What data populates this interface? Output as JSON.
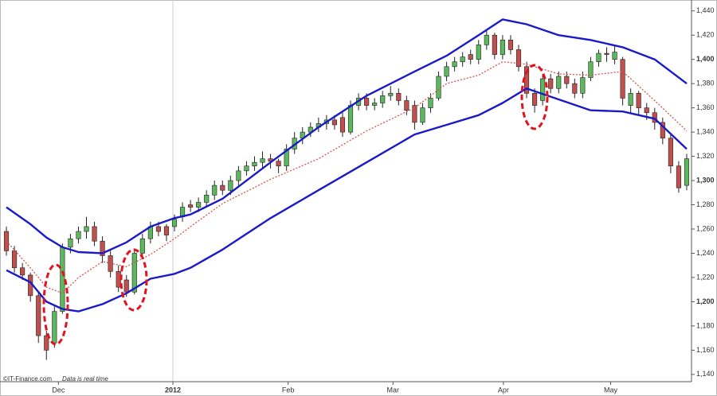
{
  "chart_data": {
    "type": "candlestick",
    "candles": [
      [
        1258,
        1262,
        1238,
        1242
      ],
      [
        1242,
        1246,
        1224,
        1228
      ],
      [
        1228,
        1232,
        1218,
        1222
      ],
      [
        1222,
        1224,
        1200,
        1205
      ],
      [
        1205,
        1208,
        1166,
        1172
      ],
      [
        1172,
        1176,
        1152,
        1160
      ],
      [
        1166,
        1196,
        1162,
        1192
      ],
      [
        1192,
        1248,
        1190,
        1245
      ],
      [
        1245,
        1256,
        1240,
        1252
      ],
      [
        1252,
        1262,
        1248,
        1258
      ],
      [
        1258,
        1270,
        1252,
        1262
      ],
      [
        1262,
        1266,
        1246,
        1250
      ],
      [
        1250,
        1254,
        1232,
        1238
      ],
      [
        1238,
        1242,
        1220,
        1225
      ],
      [
        1225,
        1230,
        1208,
        1212
      ],
      [
        1218,
        1222,
        1204,
        1208
      ],
      [
        1208,
        1244,
        1206,
        1240
      ],
      [
        1240,
        1256,
        1236,
        1252
      ],
      [
        1252,
        1266,
        1248,
        1262
      ],
      [
        1262,
        1266,
        1254,
        1258
      ],
      [
        1262,
        1264,
        1250,
        1255
      ],
      [
        1262,
        1272,
        1258,
        1268
      ],
      [
        1270,
        1282,
        1266,
        1278
      ],
      [
        1280,
        1284,
        1274,
        1278
      ],
      [
        1278,
        1286,
        1274,
        1282
      ],
      [
        1282,
        1292,
        1278,
        1288
      ],
      [
        1288,
        1300,
        1284,
        1296
      ],
      [
        1296,
        1300,
        1288,
        1292
      ],
      [
        1292,
        1304,
        1288,
        1300
      ],
      [
        1300,
        1312,
        1296,
        1308
      ],
      [
        1308,
        1316,
        1304,
        1312
      ],
      [
        1312,
        1320,
        1308,
        1315
      ],
      [
        1315,
        1324,
        1310,
        1318
      ],
      [
        1318,
        1322,
        1310,
        1316
      ],
      [
        1316,
        1318,
        1306,
        1312
      ],
      [
        1312,
        1330,
        1308,
        1326
      ],
      [
        1326,
        1340,
        1322,
        1335
      ],
      [
        1335,
        1344,
        1330,
        1340
      ],
      [
        1340,
        1348,
        1336,
        1344
      ],
      [
        1344,
        1352,
        1340,
        1347
      ],
      [
        1347,
        1354,
        1342,
        1350
      ],
      [
        1350,
        1354,
        1342,
        1346
      ],
      [
        1352,
        1356,
        1336,
        1340
      ],
      [
        1340,
        1366,
        1338,
        1362
      ],
      [
        1362,
        1372,
        1358,
        1368
      ],
      [
        1368,
        1372,
        1358,
        1362
      ],
      [
        1362,
        1368,
        1358,
        1364
      ],
      [
        1364,
        1374,
        1360,
        1370
      ],
      [
        1370,
        1378,
        1366,
        1372
      ],
      [
        1372,
        1376,
        1362,
        1366
      ],
      [
        1366,
        1370,
        1354,
        1358
      ],
      [
        1362,
        1366,
        1342,
        1348
      ],
      [
        1348,
        1364,
        1346,
        1360
      ],
      [
        1360,
        1372,
        1356,
        1368
      ],
      [
        1368,
        1390,
        1366,
        1386
      ],
      [
        1386,
        1398,
        1382,
        1394
      ],
      [
        1394,
        1402,
        1390,
        1398
      ],
      [
        1398,
        1406,
        1394,
        1402
      ],
      [
        1404,
        1408,
        1396,
        1400
      ],
      [
        1400,
        1416,
        1396,
        1412
      ],
      [
        1412,
        1424,
        1408,
        1420
      ],
      [
        1420,
        1422,
        1400,
        1404
      ],
      [
        1404,
        1420,
        1400,
        1416
      ],
      [
        1416,
        1420,
        1404,
        1408
      ],
      [
        1408,
        1412,
        1390,
        1394
      ],
      [
        1394,
        1398,
        1368,
        1372
      ],
      [
        1372,
        1376,
        1356,
        1362
      ],
      [
        1366,
        1388,
        1362,
        1384
      ],
      [
        1384,
        1388,
        1372,
        1376
      ],
      [
        1376,
        1390,
        1372,
        1386
      ],
      [
        1386,
        1390,
        1376,
        1380
      ],
      [
        1380,
        1384,
        1368,
        1372
      ],
      [
        1372,
        1390,
        1368,
        1385
      ],
      [
        1385,
        1402,
        1382,
        1398
      ],
      [
        1398,
        1408,
        1394,
        1405
      ],
      [
        1405,
        1410,
        1398,
        1404
      ],
      [
        1400,
        1412,
        1396,
        1406
      ],
      [
        1400,
        1402,
        1362,
        1368
      ],
      [
        1362,
        1376,
        1356,
        1372
      ],
      [
        1372,
        1374,
        1354,
        1360
      ],
      [
        1360,
        1364,
        1350,
        1356
      ],
      [
        1356,
        1360,
        1342,
        1348
      ],
      [
        1348,
        1352,
        1330,
        1335
      ],
      [
        1335,
        1338,
        1306,
        1312
      ],
      [
        1312,
        1316,
        1290,
        1294
      ],
      [
        1296,
        1322,
        1292,
        1318
      ]
    ],
    "up_color": "#5cb85c",
    "down_color": "#c0504d",
    "series": [
      {
        "color": "#1a1ac8",
        "style": "solid",
        "x": [
          0,
          3,
          5,
          7,
          9,
          12,
          15,
          18,
          21,
          23,
          27,
          33,
          39,
          45,
          51,
          55,
          59,
          62,
          65,
          69,
          73,
          77,
          81,
          85
        ],
        "values": [
          1278,
          1264,
          1253,
          1245,
          1241,
          1240,
          1249,
          1262,
          1269,
          1272,
          1285,
          1315,
          1344,
          1370,
          1390,
          1403,
          1420,
          1433,
          1429,
          1420,
          1416,
          1410,
          1400,
          1380
        ]
      },
      {
        "color": "#d9534f",
        "style": "dotted",
        "x": [
          0,
          3,
          5,
          7,
          9,
          12,
          15,
          18,
          21,
          23,
          27,
          33,
          39,
          45,
          51,
          55,
          59,
          62,
          65,
          69,
          73,
          77,
          81,
          85
        ],
        "values": [
          1250,
          1228,
          1212,
          1207,
          1220,
          1233,
          1229,
          1239,
          1252,
          1262,
          1281,
          1301,
          1318,
          1341,
          1360,
          1380,
          1387,
          1398,
          1396,
          1388,
          1387,
          1390,
          1366,
          1341
        ]
      },
      {
        "color": "#1a1ac8",
        "style": "solid",
        "x": [
          0,
          3,
          5,
          7,
          9,
          12,
          15,
          18,
          21,
          23,
          27,
          33,
          39,
          45,
          51,
          55,
          59,
          62,
          65,
          69,
          73,
          77,
          81,
          85
        ],
        "values": [
          1226,
          1216,
          1200,
          1194,
          1192,
          1198,
          1207,
          1219,
          1223,
          1228,
          1243,
          1269,
          1292,
          1315,
          1338,
          1346,
          1354,
          1364,
          1376,
          1367,
          1358,
          1357,
          1351,
          1326
        ]
      }
    ],
    "xlim": [
      -0.8,
      85.6
    ],
    "xticks": [
      {
        "value": 6.5,
        "label": "Dec"
      },
      {
        "value": 20.8,
        "label": "2012"
      },
      {
        "value": 35.2,
        "label": "Feb"
      },
      {
        "value": 48.3,
        "label": "Mar"
      },
      {
        "value": 62.1,
        "label": "Apr"
      },
      {
        "value": 75.5,
        "label": "May"
      }
    ],
    "ylim": [
      1134,
      1449
    ],
    "yticks": [
      {
        "value": 1140,
        "label": "1,140"
      },
      {
        "value": 1160,
        "label": "1,160"
      },
      {
        "value": 1180,
        "label": "1,180"
      },
      {
        "value": 1200,
        "label": "1,200"
      },
      {
        "value": 1220,
        "label": "1,220"
      },
      {
        "value": 1240,
        "label": "1,240"
      },
      {
        "value": 1260,
        "label": "1,260"
      },
      {
        "value": 1280,
        "label": "1,280"
      },
      {
        "value": 1300,
        "label": "1,300"
      },
      {
        "value": 1320,
        "label": "1,320"
      },
      {
        "value": 1340,
        "label": "1,340"
      },
      {
        "value": 1360,
        "label": "1,360"
      },
      {
        "value": 1380,
        "label": "1,380"
      },
      {
        "value": 1400,
        "label": "1,400"
      },
      {
        "value": 1420,
        "label": "1,420"
      },
      {
        "value": 1440,
        "label": "1,440"
      }
    ],
    "footer": {
      "source": "©IT-Finance.com",
      "note": "Data is real time"
    }
  }
}
